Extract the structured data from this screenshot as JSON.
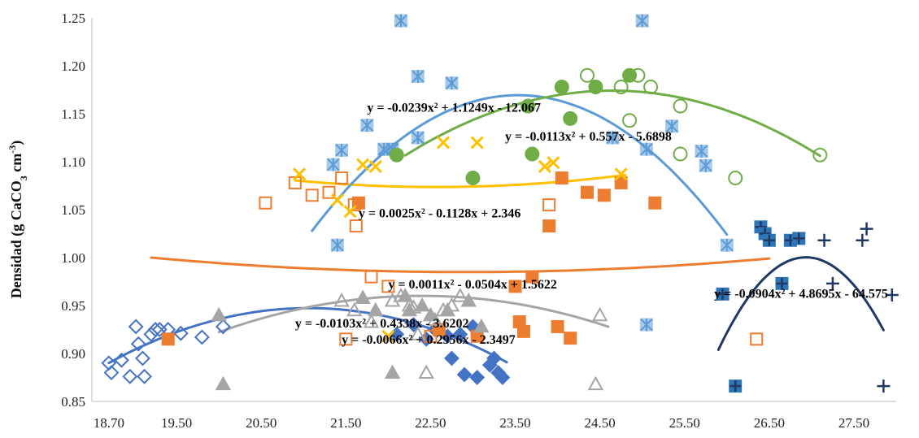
{
  "chart_data": {
    "type": "scatter",
    "title": "",
    "xlabel": "",
    "ylabel": "Densidad (g CaCO3 cm-3)",
    "ylabel_parts": {
      "main": "Densidad (g CaCO",
      "sub": "3",
      "mid": " cm",
      "sup": "-3",
      "end": ")"
    },
    "xlim": [
      18.5,
      28.0
    ],
    "ylim": [
      0.85,
      1.25
    ],
    "x_ticks": [
      18.7,
      19.5,
      20.5,
      21.5,
      22.5,
      23.5,
      24.5,
      25.5,
      26.5,
      27.5
    ],
    "x_tick_labels": [
      "18.70",
      "19.50",
      "20.50",
      "21.50",
      "22.50",
      "23.50",
      "24.50",
      "25.50",
      "26.50",
      "27.50"
    ],
    "y_ticks": [
      0.85,
      0.9,
      0.95,
      1.0,
      1.05,
      1.1,
      1.15,
      1.2,
      1.25
    ],
    "y_tick_labels": [
      "0.85",
      "0.90",
      "0.95",
      "1.00",
      "1.05",
      "1.10",
      "1.15",
      "1.20",
      "1.25"
    ],
    "grid": false,
    "legend": "none",
    "series": [
      {
        "color": "#4472C4",
        "points_open": [
          [
            18.7,
            0.89
          ],
          [
            18.73,
            0.88
          ],
          [
            18.85,
            0.893
          ],
          [
            18.95,
            0.876
          ],
          [
            19.02,
            0.928
          ],
          [
            19.05,
            0.91
          ],
          [
            19.12,
            0.876
          ],
          [
            19.2,
            0.92
          ],
          [
            19.25,
            0.925
          ],
          [
            19.3,
            0.925
          ],
          [
            19.1,
            0.895
          ],
          [
            19.4,
            0.925
          ],
          [
            19.55,
            0.921
          ],
          [
            19.8,
            0.917
          ],
          [
            20.05,
            0.928
          ]
        ],
        "points_filled": [
          [
            22.1,
            0.92
          ],
          [
            22.3,
            0.93
          ],
          [
            22.55,
            0.925
          ],
          [
            22.7,
            0.918
          ],
          [
            22.75,
            0.895
          ],
          [
            22.85,
            0.92
          ],
          [
            22.9,
            0.878
          ],
          [
            23.0,
            0.928
          ],
          [
            23.05,
            0.875
          ],
          [
            23.2,
            0.888
          ],
          [
            23.3,
            0.88
          ],
          [
            23.25,
            0.895
          ],
          [
            23.35,
            0.875
          ],
          [
            22.45,
            0.915
          ]
        ],
        "trend": {
          "a": -0.0103,
          "b": 0.4338,
          "c": -3.6202,
          "x_range": [
            18.7,
            23.4
          ]
        },
        "equation": "y = -0.0103x² + 0.4338x - 3.6202",
        "eq_anchor": [
          20.9,
          0.927
        ]
      },
      {
        "color": "#ED7D31",
        "points_open": [
          [
            20.55,
            1.057
          ],
          [
            20.9,
            1.078
          ],
          [
            21.1,
            1.065
          ],
          [
            21.3,
            1.068
          ],
          [
            21.45,
            1.083
          ],
          [
            21.62,
            1.033
          ],
          [
            21.8,
            0.98
          ],
          [
            21.6,
            1.055
          ],
          [
            22.5,
            0.918
          ],
          [
            23.9,
            1.055
          ],
          [
            26.35,
            0.915
          ],
          [
            21.5,
            0.915
          ],
          [
            22.0,
            0.97
          ]
        ],
        "points_filled": [
          [
            19.4,
            0.915
          ],
          [
            21.65,
            1.057
          ],
          [
            22.6,
            0.925
          ],
          [
            23.05,
            0.918
          ],
          [
            23.5,
            0.97
          ],
          [
            23.6,
            0.923
          ],
          [
            23.55,
            0.933
          ],
          [
            23.9,
            1.033
          ],
          [
            24.05,
            1.083
          ],
          [
            24.0,
            0.928
          ],
          [
            24.15,
            0.916
          ],
          [
            24.35,
            1.068
          ],
          [
            24.55,
            1.065
          ],
          [
            24.75,
            1.078
          ],
          [
            25.15,
            1.057
          ],
          [
            23.7,
            0.98
          ]
        ],
        "trend": {
          "a": 0.0011,
          "b": -0.0504,
          "c": 1.5622,
          "x_range": [
            19.2,
            26.5
          ]
        },
        "equation": "y = 0.0011x² - 0.0504x + 1.5622",
        "eq_anchor": [
          22.0,
          0.968
        ]
      },
      {
        "color": "#A5A5A5",
        "points_open": [
          [
            21.45,
            0.955
          ],
          [
            21.6,
            0.945
          ],
          [
            21.8,
            0.933
          ],
          [
            22.05,
            0.955
          ],
          [
            22.15,
            0.96
          ],
          [
            22.25,
            0.95
          ],
          [
            22.35,
            0.92
          ],
          [
            22.45,
            0.88
          ],
          [
            22.55,
            0.935
          ],
          [
            22.65,
            0.945
          ],
          [
            22.75,
            0.95
          ],
          [
            22.85,
            0.96
          ],
          [
            24.45,
            0.868
          ],
          [
            24.5,
            0.94
          ],
          [
            22.3,
            0.948
          ]
        ],
        "points_filled": [
          [
            20.0,
            0.94
          ],
          [
            20.05,
            0.868
          ],
          [
            21.7,
            0.958
          ],
          [
            21.85,
            0.945
          ],
          [
            22.05,
            0.88
          ],
          [
            22.25,
            0.945
          ],
          [
            22.4,
            0.95
          ],
          [
            22.5,
            0.94
          ],
          [
            22.7,
            0.945
          ],
          [
            22.95,
            0.955
          ],
          [
            23.1,
            0.928
          ],
          [
            22.2,
            0.96
          ]
        ],
        "trend": {
          "a": -0.0066,
          "b": 0.2956,
          "c": -2.3497,
          "x_range": [
            20.0,
            24.6
          ]
        },
        "equation": "y = -0.0066x² + 0.2956x - 2.3497",
        "eq_anchor": [
          21.45,
          0.91
        ]
      },
      {
        "color": "#FFC000",
        "points_x": [
          [
            20.95,
            1.087
          ],
          [
            21.55,
            1.048
          ],
          [
            21.7,
            1.097
          ],
          [
            21.85,
            1.095
          ],
          [
            22.65,
            1.12
          ],
          [
            23.05,
            1.12
          ],
          [
            23.85,
            1.095
          ],
          [
            23.95,
            1.099
          ],
          [
            24.75,
            1.087
          ],
          [
            21.4,
            1.06
          ],
          [
            22.0,
            0.918
          ]
        ],
        "trend": {
          "a": 0.0025,
          "b": -0.1128,
          "c": 2.346,
          "x_range": [
            20.9,
            24.8
          ]
        },
        "equation": "y = 0.0025x² - 0.1128x + 2.346",
        "eq_anchor": [
          21.65,
          1.042
        ]
      },
      {
        "color": "#5B9BD5",
        "points_star": [
          [
            21.4,
            1.013
          ],
          [
            21.35,
            1.097
          ],
          [
            21.45,
            1.112
          ],
          [
            21.75,
            1.138
          ],
          [
            21.95,
            1.113
          ],
          [
            22.05,
            1.113
          ],
          [
            22.35,
            1.189
          ],
          [
            22.35,
            1.125
          ],
          [
            22.75,
            1.182
          ],
          [
            22.15,
            1.247
          ],
          [
            25.0,
            1.247
          ],
          [
            24.65,
            1.125
          ],
          [
            25.05,
            1.113
          ],
          [
            25.35,
            1.137
          ],
          [
            25.7,
            1.111
          ],
          [
            25.75,
            1.096
          ],
          [
            26.0,
            1.013
          ],
          [
            25.05,
            0.93
          ]
        ],
        "trend": {
          "a": -0.0239,
          "b": 1.1249,
          "c": -12.067,
          "x_range": [
            21.1,
            26.0
          ]
        },
        "equation": "y = -0.0239x² + 1.1249x - 12.067",
        "eq_anchor": [
          21.75,
          1.152
        ]
      },
      {
        "color": "#70AD47",
        "points_open": [
          [
            24.35,
            1.19
          ],
          [
            24.75,
            1.178
          ],
          [
            24.85,
            1.143
          ],
          [
            25.1,
            1.178
          ],
          [
            25.45,
            1.158
          ],
          [
            25.45,
            1.108
          ],
          [
            26.1,
            1.083
          ],
          [
            27.1,
            1.107
          ],
          [
            24.95,
            1.19
          ]
        ],
        "points_filled": [
          [
            22.1,
            1.107
          ],
          [
            23.0,
            1.083
          ],
          [
            23.65,
            1.158
          ],
          [
            23.7,
            1.108
          ],
          [
            24.05,
            1.178
          ],
          [
            24.15,
            1.145
          ],
          [
            24.45,
            1.178
          ],
          [
            24.85,
            1.19
          ]
        ],
        "trend": {
          "a": -0.0113,
          "b": 0.557,
          "c": -5.6898,
          "x_range": [
            22.2,
            27.1
          ]
        },
        "equation": "y = -0.0113x² + 0.557x - 5.6898",
        "eq_anchor": [
          23.38,
          1.122
        ]
      },
      {
        "color": "#203864",
        "points_filled_square_plus": [
          [
            25.95,
            0.962
          ],
          [
            26.1,
            0.866
          ],
          [
            26.4,
            1.032
          ],
          [
            26.45,
            1.025
          ],
          [
            26.5,
            1.018
          ],
          [
            26.65,
            0.973
          ],
          [
            26.75,
            1.018
          ],
          [
            26.85,
            1.02
          ]
        ],
        "points_plus": [
          [
            27.15,
            1.018
          ],
          [
            27.25,
            0.973
          ],
          [
            27.6,
            1.018
          ],
          [
            27.65,
            1.03
          ],
          [
            27.95,
            0.961
          ],
          [
            27.85,
            0.866
          ]
        ],
        "trend": {
          "a": -0.0904,
          "b": 4.8695,
          "c": -64.575,
          "x_range": [
            25.9,
            27.85
          ]
        },
        "equation": "y = -0.0904x² + 4.8695x - 64.575",
        "eq_anchor": [
          25.85,
          0.958
        ]
      }
    ]
  }
}
